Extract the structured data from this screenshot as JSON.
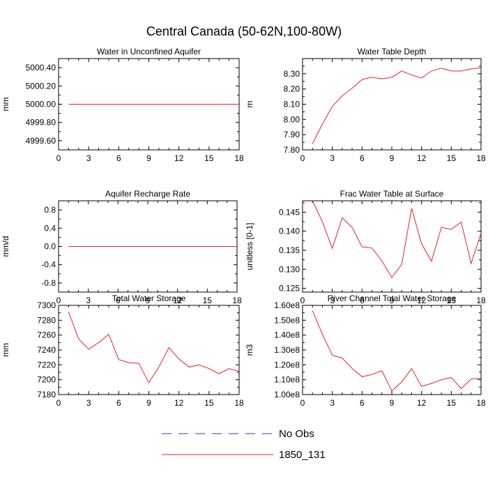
{
  "title": "Central Canada (50-62N,100-80W)",
  "legend": [
    {
      "label": "No Obs",
      "color": "#3333cc",
      "dash": true
    },
    {
      "label": "1850_131",
      "color": "#e8202a",
      "dash": false
    }
  ],
  "chart_data": [
    {
      "type": "line",
      "title": "Water in Unconfined Aquifer",
      "ylabel": "mm",
      "xlim": [
        0,
        18
      ],
      "ylim": [
        4999.5,
        5000.5
      ],
      "yticks": [
        4999.6,
        4999.8,
        5000.0,
        5000.2,
        5000.4
      ],
      "ytick_labels": [
        "4999.60",
        "4999.80",
        "5000.00",
        "5000.20",
        "5000.40"
      ],
      "xticks": [
        0,
        3,
        6,
        9,
        12,
        15,
        18
      ],
      "xtick_labels": [
        "0",
        "3",
        "6",
        "9",
        "12",
        "15",
        "18"
      ],
      "series": [
        {
          "x": [
            1,
            2,
            3,
            4,
            5,
            6,
            7,
            8,
            9,
            10,
            11,
            12,
            13,
            14,
            15,
            16,
            17,
            18
          ],
          "values": [
            5000,
            5000,
            5000,
            5000,
            5000,
            5000,
            5000,
            5000,
            5000,
            5000,
            5000,
            5000,
            5000,
            5000,
            5000,
            5000,
            5000,
            5000
          ]
        }
      ]
    },
    {
      "type": "line",
      "title": "Water Table Depth",
      "ylabel": "m",
      "xlim": [
        0,
        18
      ],
      "ylim": [
        7.8,
        8.4
      ],
      "yticks": [
        7.8,
        7.9,
        8.0,
        8.1,
        8.2,
        8.3
      ],
      "ytick_labels": [
        "7.80",
        "7.90",
        "8.00",
        "8.10",
        "8.20",
        "8.30"
      ],
      "xticks": [
        0,
        3,
        6,
        9,
        12,
        15,
        18
      ],
      "xtick_labels": [
        "0",
        "3",
        "6",
        "9",
        "12",
        "15",
        "18"
      ],
      "series": [
        {
          "x": [
            1,
            2,
            3,
            4,
            5,
            6,
            7,
            8,
            9,
            10,
            11,
            12,
            13,
            14,
            15,
            16,
            17,
            18
          ],
          "values": [
            7.84,
            7.97,
            8.085,
            8.155,
            8.205,
            8.262,
            8.277,
            8.267,
            8.277,
            8.318,
            8.292,
            8.272,
            8.318,
            8.337,
            8.318,
            8.318,
            8.332,
            8.34
          ]
        }
      ]
    },
    {
      "type": "line",
      "title": "Aquifer Recharge Rate",
      "ylabel": "mm/d",
      "xlim": [
        0,
        18
      ],
      "ylim": [
        -1.0,
        1.0
      ],
      "yticks": [
        -0.8,
        -0.4,
        0.0,
        0.4,
        0.8
      ],
      "ytick_labels": [
        "-0.8",
        "-0.4",
        "0.0",
        "0.4",
        "0.8"
      ],
      "xticks": [
        0,
        3,
        6,
        9,
        12,
        15,
        18
      ],
      "xtick_labels": [
        "0",
        "3",
        "6",
        "9",
        "12",
        "15",
        "18"
      ],
      "series": [
        {
          "x": [
            1,
            2,
            3,
            4,
            5,
            6,
            7,
            8,
            9,
            10,
            11,
            12,
            13,
            14,
            15,
            16,
            17,
            18
          ],
          "values": [
            0,
            0,
            0,
            0,
            0,
            0,
            0,
            0,
            0,
            0,
            0,
            0,
            0,
            0,
            0,
            0,
            0,
            0
          ]
        }
      ]
    },
    {
      "type": "line",
      "title": "Frac Water Table at Surface",
      "ylabel": "unitless [0-1]",
      "xlim": [
        0,
        18
      ],
      "ylim": [
        0.124,
        0.148
      ],
      "yticks": [
        0.125,
        0.13,
        0.135,
        0.14,
        0.145
      ],
      "ytick_labels": [
        "0.125",
        "0.130",
        "0.135",
        "0.140",
        "0.145"
      ],
      "xticks": [
        0,
        3,
        6,
        9,
        12,
        15,
        18
      ],
      "xtick_labels": [
        "0",
        "3",
        "6",
        "9",
        "12",
        "15",
        "18"
      ],
      "series": [
        {
          "x": [
            1,
            2,
            3,
            4,
            5,
            6,
            7,
            8,
            9,
            10,
            11,
            12,
            13,
            14,
            15,
            16,
            17,
            18
          ],
          "values": [
            0.148,
            0.1425,
            0.1355,
            0.1435,
            0.141,
            0.1359,
            0.1356,
            0.1322,
            0.1278,
            0.1313,
            0.146,
            0.1367,
            0.1321,
            0.141,
            0.1405,
            0.1424,
            0.1315,
            0.1395
          ]
        }
      ]
    },
    {
      "type": "line",
      "title": "Total Water Storage",
      "ylabel": "mm",
      "xlim": [
        0,
        18
      ],
      "ylim": [
        7180,
        7300
      ],
      "yticks": [
        7180,
        7200,
        7220,
        7240,
        7260,
        7280,
        7300
      ],
      "ytick_labels": [
        "7180",
        "7200",
        "7220",
        "7240",
        "7260",
        "7280",
        "7300"
      ],
      "xticks": [
        0,
        3,
        6,
        9,
        12,
        15,
        18
      ],
      "xtick_labels": [
        "0",
        "3",
        "6",
        "9",
        "12",
        "15",
        "18"
      ],
      "series": [
        {
          "x": [
            1,
            2,
            3,
            4,
            5,
            6,
            7,
            8,
            9,
            10,
            11,
            12,
            13,
            14,
            15,
            16,
            17,
            18
          ],
          "values": [
            7291,
            7255,
            7241,
            7250,
            7261,
            7227,
            7223,
            7222,
            7196,
            7217,
            7243,
            7228,
            7217,
            7220,
            7215,
            7208,
            7215,
            7211
          ]
        }
      ]
    },
    {
      "type": "line",
      "title": "River Channel Total Water Storage",
      "ylabel": "m3",
      "xlim": [
        0,
        18
      ],
      "ylim": [
        100000000.0,
        160000000.0
      ],
      "yticks": [
        100000000.0,
        110000000.0,
        120000000.0,
        130000000.0,
        140000000.0,
        150000000.0,
        160000000.0
      ],
      "ytick_labels": [
        "1.00e8",
        "1.10e8",
        "1.20e8",
        "1.30e8",
        "1.40e8",
        "1.50e8",
        "1.60e8"
      ],
      "xticks": [
        0,
        3,
        6,
        9,
        12,
        15,
        18
      ],
      "xtick_labels": [
        "0",
        "3",
        "6",
        "9",
        "12",
        "15",
        "18"
      ],
      "series": [
        {
          "x": [
            1,
            2,
            3,
            4,
            5,
            6,
            7,
            8,
            9,
            10,
            11,
            12,
            13,
            14,
            15,
            16,
            17,
            18
          ],
          "values": [
            156500000.0,
            140500000.0,
            126500000.0,
            124500000.0,
            117500000.0,
            112000000.0,
            113500000.0,
            116000000.0,
            102500000.0,
            108500000.0,
            117500000.0,
            105500000.0,
            107500000.0,
            110000000.0,
            111500000.0,
            104000000.0,
            110500000.0,
            111000000.0
          ]
        }
      ]
    }
  ]
}
